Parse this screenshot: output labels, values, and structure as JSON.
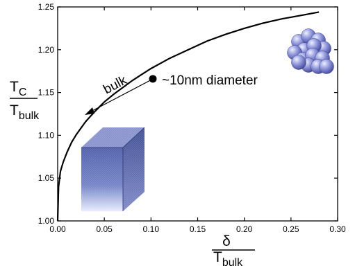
{
  "chart_data": {
    "type": "line",
    "x": [
      0.0,
      0.001,
      0.003,
      0.006,
      0.01,
      0.015,
      0.02,
      0.03,
      0.04,
      0.05,
      0.06,
      0.07,
      0.08,
      0.09,
      0.1,
      0.12,
      0.14,
      0.16,
      0.18,
      0.2,
      0.22,
      0.24,
      0.26,
      0.28
    ],
    "series": [
      {
        "values": [
          1.0,
          1.04,
          1.058,
          1.069,
          1.08,
          1.092,
          1.101,
          1.116,
          1.128,
          1.139,
          1.148,
          1.156,
          1.164,
          1.171,
          1.178,
          1.19,
          1.2,
          1.21,
          1.218,
          1.225,
          1.231,
          1.236,
          1.24,
          1.244
        ]
      }
    ],
    "xlim": [
      0.0,
      0.3
    ],
    "ylim": [
      1.0,
      1.25
    ],
    "xticks": [
      "0.00",
      "0.05",
      "0.10",
      "0.15",
      "0.20",
      "0.25",
      "0.30"
    ],
    "yticks": [
      "1.00",
      "1.05",
      "1.10",
      "1.15",
      "1.20",
      "1.25"
    ],
    "xlabel": {
      "numerator": "δ",
      "denominator": "T",
      "denominator_sub": "bulk"
    },
    "ylabel": {
      "numerator": "T",
      "numerator_sub": "C",
      "denominator": "T",
      "denominator_sub": "bulk"
    },
    "marked_point": {
      "x": 0.102,
      "y": 1.166,
      "label": "~10nm diameter"
    },
    "arrow_label": "bulk",
    "grid": false,
    "line_color": "#000000",
    "sphere_color": "#8a90dc",
    "cube_color": "#5a6ab0"
  }
}
